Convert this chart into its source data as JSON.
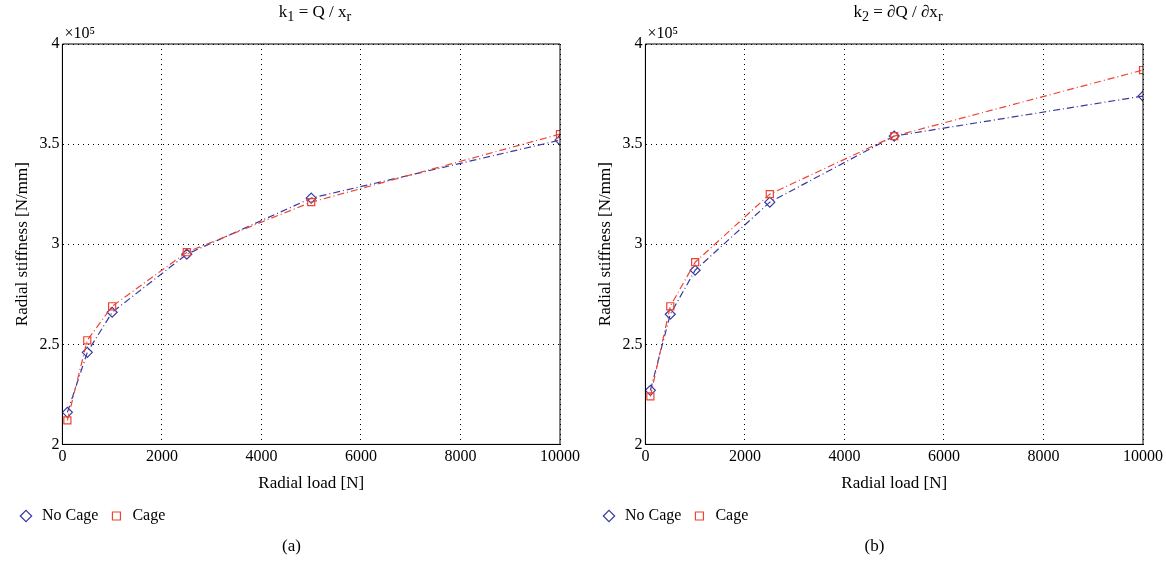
{
  "chart_data": [
    {
      "type": "line",
      "title": "k$_{1}$ = Q / x$_{r}$",
      "xlabel": "Radial load [N]",
      "ylabel": "Radial stiffness [N/mm]",
      "x": [
        100,
        500,
        1000,
        2500,
        5000,
        10000
      ],
      "series": [
        {
          "name": "No Cage",
          "color": "#3a3aa0",
          "marker": "diamond",
          "values": [
            2.16,
            2.46,
            2.66,
            2.95,
            3.23,
            3.52
          ]
        },
        {
          "name": "Cage",
          "color": "#ee4433",
          "marker": "square",
          "values": [
            2.12,
            2.52,
            2.69,
            2.96,
            3.21,
            3.55
          ]
        }
      ],
      "xlim": [
        0,
        10000
      ],
      "xticks": [
        0,
        2000,
        4000,
        6000,
        8000,
        10000
      ],
      "ylim": [
        2,
        4
      ],
      "yticks": [
        2,
        2.5,
        3,
        3.5,
        4
      ],
      "grid": true,
      "legend": "bottom left",
      "line_style": "dashed",
      "annotations": [
        "×10⁵",
        "(a)"
      ]
    },
    {
      "type": "line",
      "title": "k$_{2}$ = ∂Q / ∂x$_{r}$",
      "xlabel": "Radial load [N]",
      "ylabel": "Radial stiffness [N/mm]",
      "x": [
        100,
        500,
        1000,
        2500,
        5000,
        10000
      ],
      "series": [
        {
          "name": "No Cage",
          "color": "#3a3aa0",
          "marker": "diamond",
          "values": [
            2.27,
            2.65,
            2.87,
            3.21,
            3.54,
            3.74
          ]
        },
        {
          "name": "Cage",
          "color": "#ee4433",
          "marker": "square",
          "values": [
            2.24,
            2.69,
            2.91,
            3.25,
            3.54,
            3.87
          ]
        }
      ],
      "xlim": [
        0,
        10000
      ],
      "xticks": [
        0,
        2000,
        4000,
        6000,
        8000,
        10000
      ],
      "ylim": [
        2,
        4
      ],
      "yticks": [
        2,
        2.5,
        3,
        3.5,
        4
      ],
      "grid": true,
      "legend": "bottom left",
      "line_style": "dashed",
      "annotations": [
        "×10⁵",
        "(b)"
      ]
    }
  ]
}
